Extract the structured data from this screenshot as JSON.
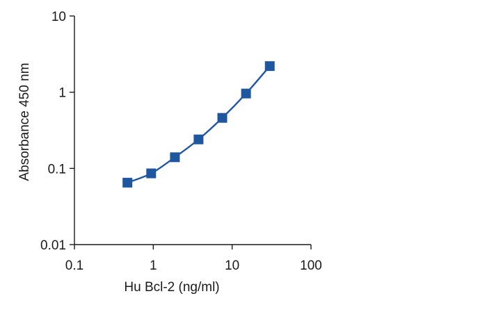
{
  "chart_data": {
    "type": "line",
    "xscale": "log",
    "yscale": "log",
    "xlabel": "Hu Bcl-2 (ng/ml)",
    "ylabel": "Absorbance 450 nm",
    "xlim": [
      0.1,
      100
    ],
    "ylim": [
      0.01,
      10
    ],
    "xticks": [
      "0.1",
      "1",
      "10",
      "100"
    ],
    "yticks": [
      "0.01",
      "0.1",
      "1",
      "10"
    ],
    "grid": false,
    "series": [
      {
        "x": [
          0.47,
          0.94,
          1.88,
          3.75,
          7.5,
          15,
          30
        ],
        "y": [
          0.065,
          0.086,
          0.14,
          0.24,
          0.46,
          0.96,
          2.2
        ],
        "color": "#1f56a0",
        "marker": "square"
      }
    ]
  }
}
